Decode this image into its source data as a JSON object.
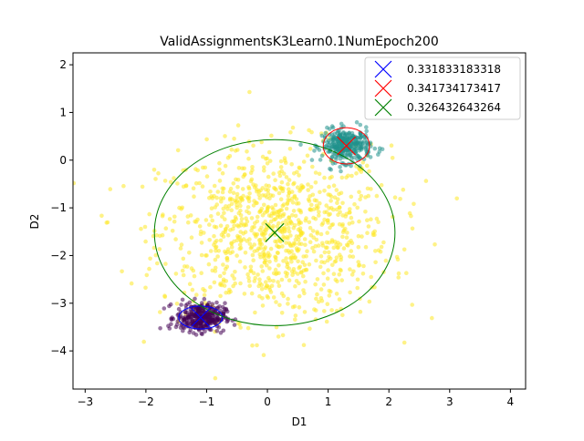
{
  "chart_data": {
    "type": "scatter",
    "title": "ValidAssignmentsK3Learn0.1NumEpoch200",
    "xlabel": "D1",
    "ylabel": "D2",
    "xlim": [
      -3.2,
      4.25
    ],
    "ylim": [
      -4.8,
      2.25
    ],
    "x_ticks": [
      -3,
      -2,
      -1,
      0,
      1,
      2,
      3,
      4
    ],
    "y_ticks": [
      2,
      1,
      0,
      -1,
      -2,
      -3,
      -4
    ],
    "x_tick_labels": [
      "−3",
      "−2",
      "−1",
      "0",
      "1",
      "2",
      "3",
      "4"
    ],
    "y_tick_labels": [
      "2",
      "1",
      "0",
      "−1",
      "−2",
      "−3",
      "−4"
    ],
    "grid": false,
    "legend_position": "top-right",
    "series": [
      {
        "name": "0.331833183318",
        "color": "#0000ff",
        "center": [
          -1.1,
          -3.3
        ],
        "radius": [
          0.36,
          0.24
        ],
        "point_color": "#440154",
        "count": 330,
        "spread": [
          0.2,
          0.15
        ]
      },
      {
        "name": "0.341734173417",
        "color": "#ff0000",
        "center": [
          1.3,
          0.3
        ],
        "radius": [
          0.38,
          0.38
        ],
        "point_color": "#21918c",
        "count": 330,
        "spread": [
          0.2,
          0.17
        ]
      },
      {
        "name": "0.326432643264",
        "color": "#008000",
        "center": [
          0.12,
          -1.52
        ],
        "radius": [
          1.98,
          1.95
        ],
        "point_color": "#fde725",
        "count": 1000,
        "spread": [
          0.95,
          0.9
        ]
      }
    ]
  }
}
